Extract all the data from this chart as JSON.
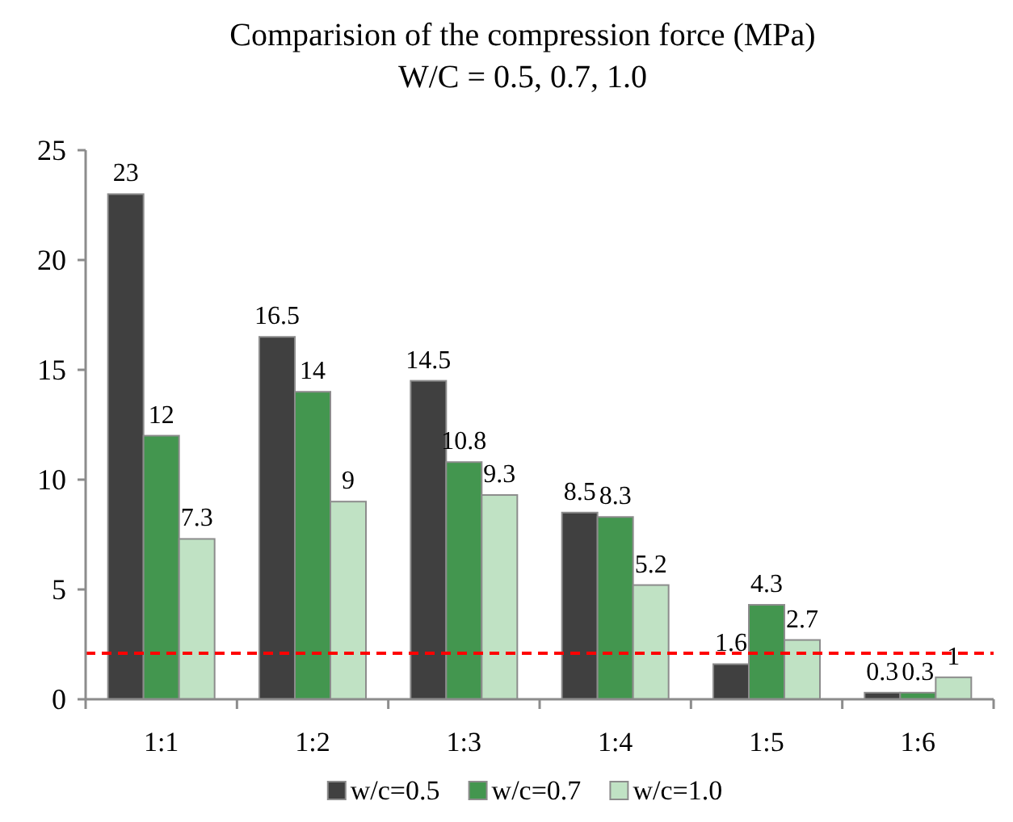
{
  "chart_data": {
    "type": "bar",
    "title": "Comparision of the compression force (MPa)",
    "subtitle": "W/C = 0.5, 0.7, 1.0",
    "categories": [
      "1:1",
      "1:2",
      "1:3",
      "1:4",
      "1:5",
      "1:6"
    ],
    "series": [
      {
        "name": "w/c=0.5",
        "color": "#404040",
        "values": [
          23,
          16.5,
          14.5,
          8.5,
          1.6,
          0.3
        ]
      },
      {
        "name": "w/c=0.7",
        "color": "#43964f",
        "values": [
          12,
          14,
          10.8,
          8.3,
          4.3,
          0.3
        ]
      },
      {
        "name": "w/c=1.0",
        "color": "#c0e2c4",
        "values": [
          7.3,
          9,
          9.3,
          5.2,
          2.7,
          1
        ]
      }
    ],
    "ylim": [
      0,
      25
    ],
    "yticks": [
      0,
      5,
      10,
      15,
      20,
      25
    ],
    "grid": false,
    "legend": "bottom",
    "data_labels": true,
    "ref_lines": [
      {
        "axis": "y",
        "value": 2.1,
        "color": "#ff0000",
        "line_style": "dashed"
      }
    ]
  }
}
